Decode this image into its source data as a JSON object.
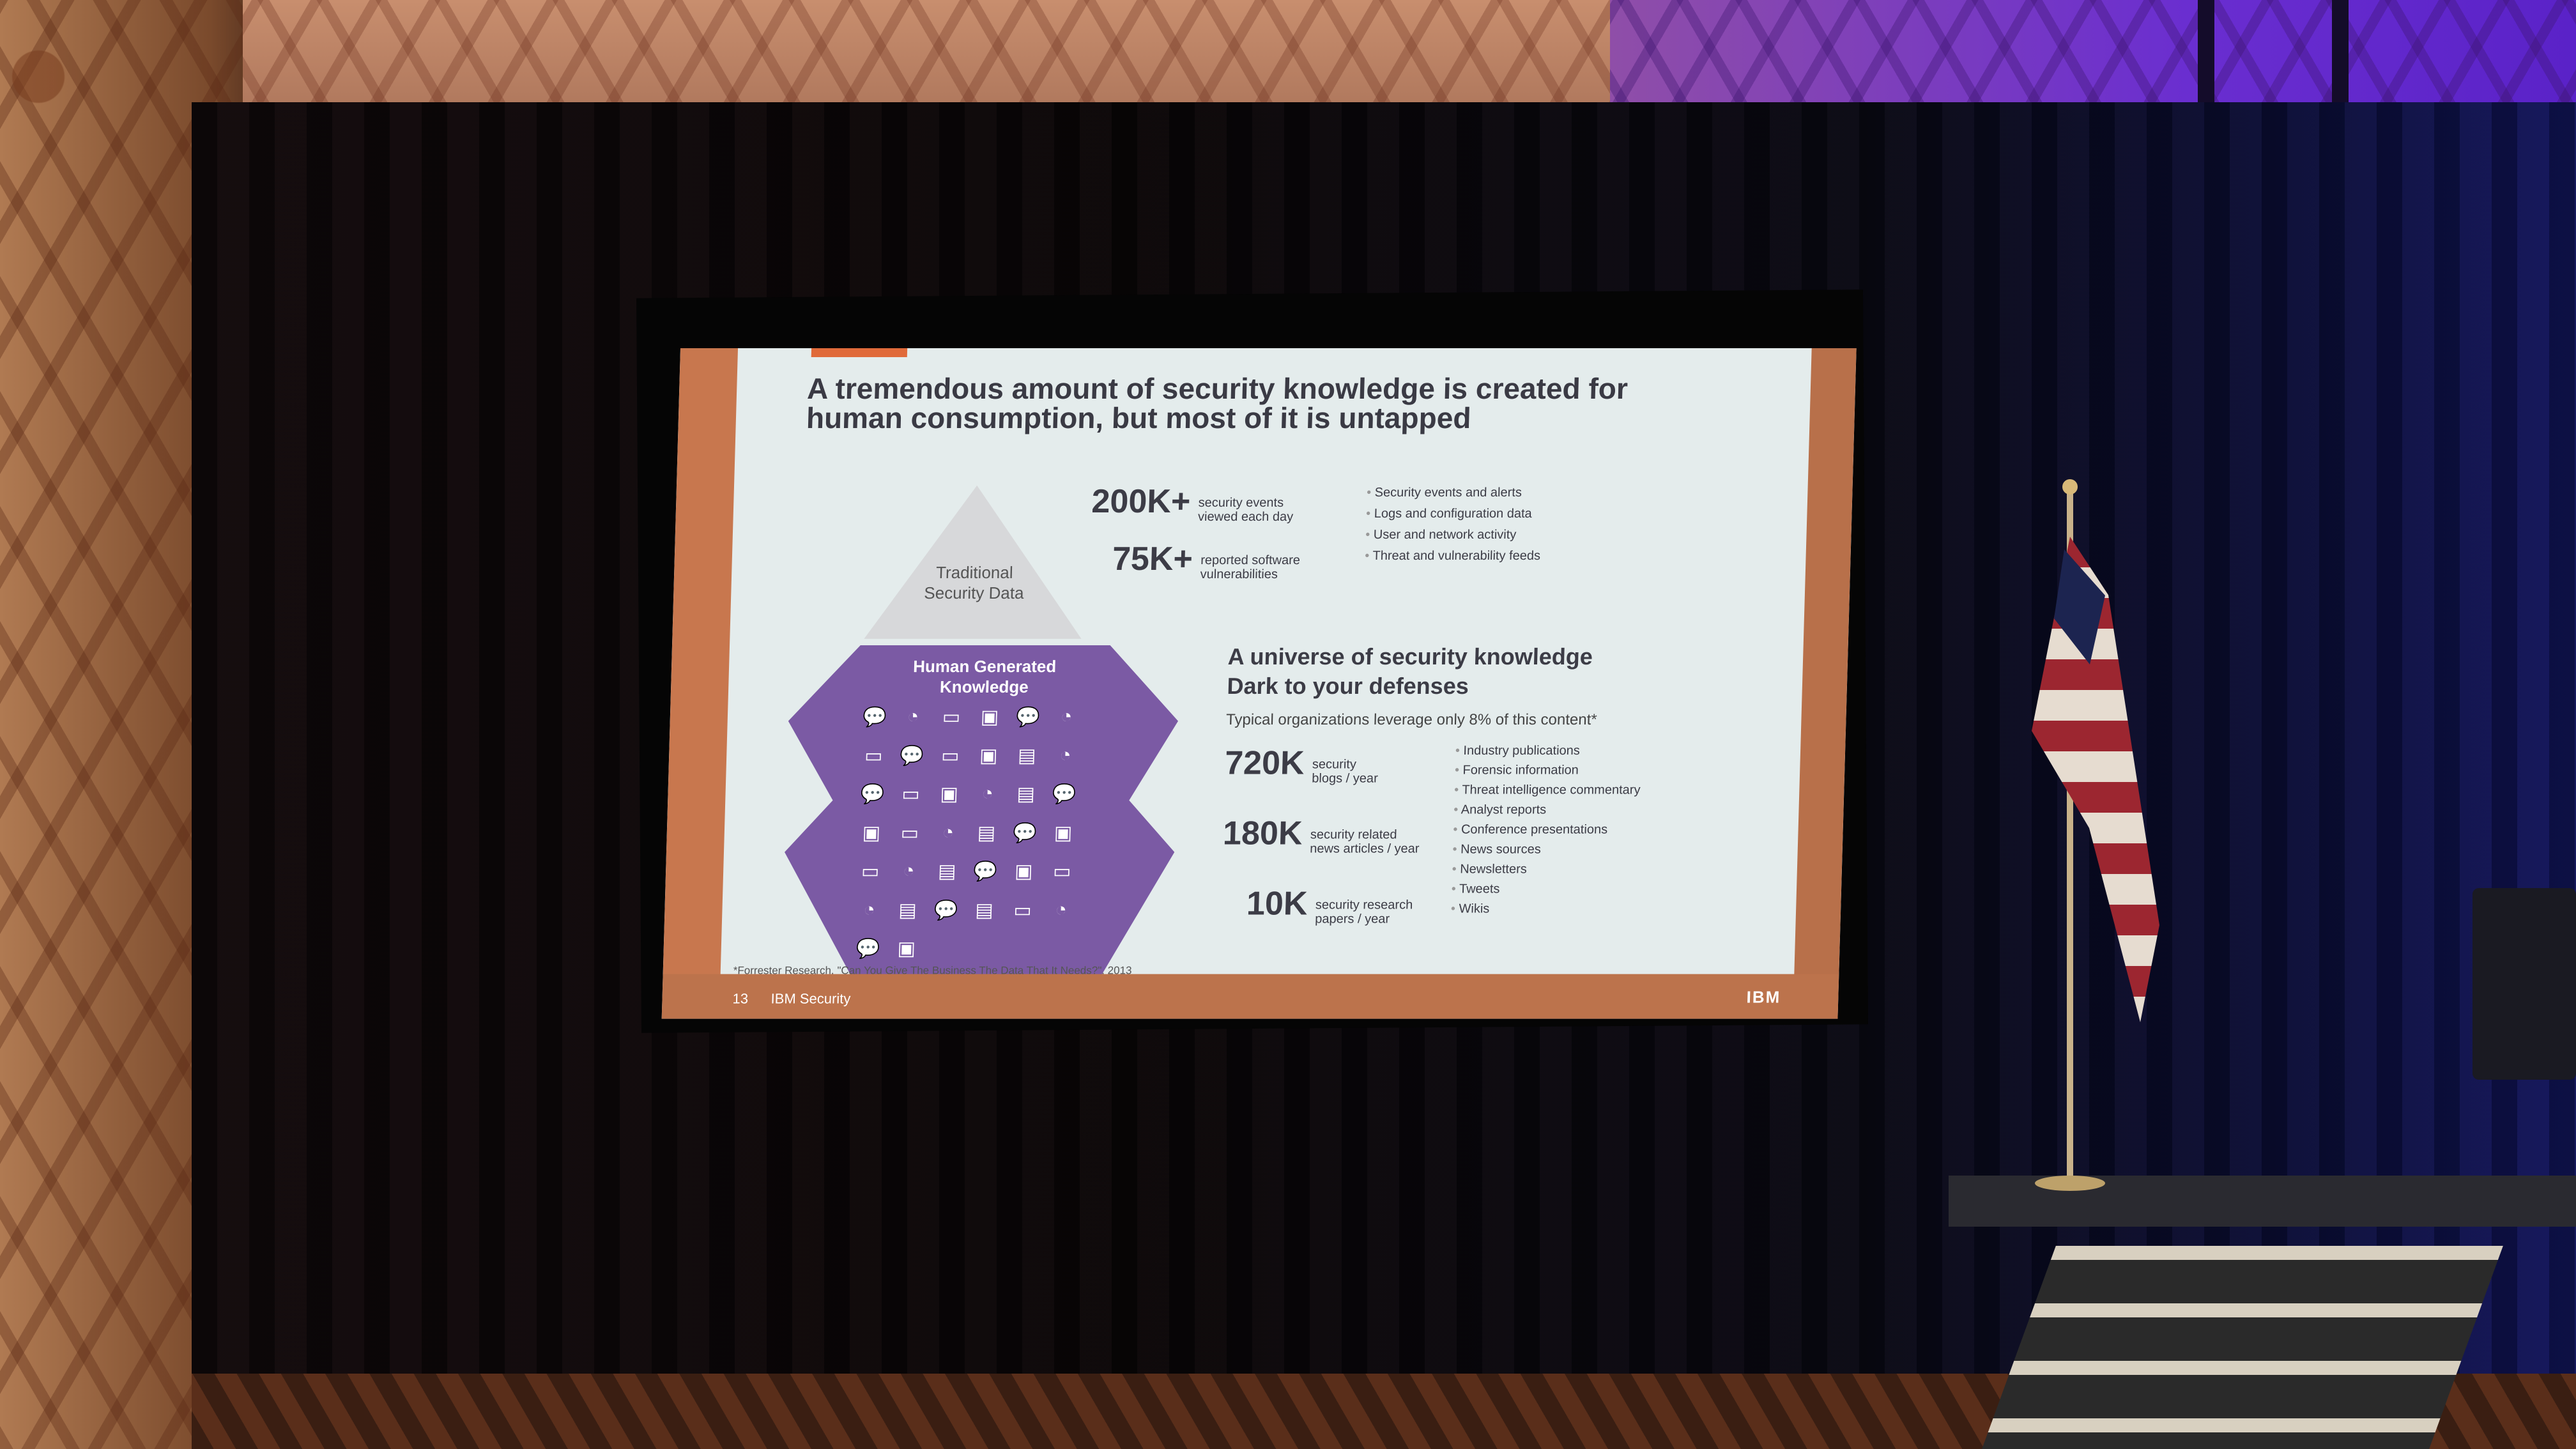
{
  "slide": {
    "title": "A tremendous amount of security knowledge is created for human consumption, but most of it is untapped",
    "tip_label_1": "Traditional",
    "tip_label_2": "Security Data",
    "base_label_1": "Human Generated",
    "base_label_2": "Knowledge",
    "stats_top": [
      {
        "value": "200K+",
        "desc_1": "security events",
        "desc_2": "viewed each day"
      },
      {
        "value": "75K+",
        "desc_1": "reported software",
        "desc_2": "vulnerabilities"
      }
    ],
    "bullets_top": [
      "Security events and alerts",
      "Logs and configuration data",
      "User and network activity",
      "Threat and vulnerability feeds"
    ],
    "subhead_1": "A universe of security knowledge",
    "subhead_2": "Dark to your defenses",
    "caption": "Typical organizations leverage only 8% of this content*",
    "stats_bottom": [
      {
        "value": "720K",
        "desc_1": "security",
        "desc_2": "blogs / year"
      },
      {
        "value": "180K",
        "desc_1": "security related",
        "desc_2": "news articles / year"
      },
      {
        "value": "10K",
        "desc_1": "security research",
        "desc_2": "papers / year"
      }
    ],
    "bullets_bottom": [
      "Industry publications",
      "Forensic information",
      "Threat intelligence commentary",
      "Analyst reports",
      "Conference presentations",
      "News sources",
      "Newsletters",
      "Tweets",
      "Wikis"
    ],
    "footnote": "*Forrester Research, \"Can You Give The Business The Data That It Needs?\", 2013",
    "page_number": "13",
    "brand": "IBM Security",
    "logo": "IBM"
  },
  "colors": {
    "slide_bg": "#e4ecec",
    "accent_orange": "#c8774e",
    "iceberg_purple": "#7b5aa4",
    "text_dark": "#3c3c46"
  }
}
